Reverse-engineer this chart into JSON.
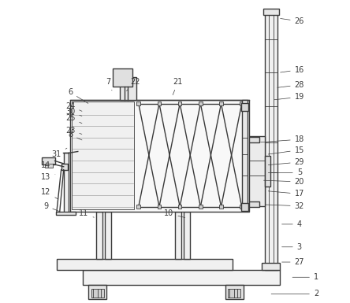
{
  "bg_color": "#ffffff",
  "line_color": "#3a3a3a",
  "lw": 1.0,
  "tlw": 0.6,
  "fs": 7.0,
  "label_positions": {
    "1": [
      0.965,
      0.085,
      0.88,
      0.085
    ],
    "2": [
      0.965,
      0.03,
      0.81,
      0.03
    ],
    "3": [
      0.91,
      0.185,
      0.845,
      0.185
    ],
    "4": [
      0.91,
      0.26,
      0.845,
      0.26
    ],
    "5": [
      0.91,
      0.43,
      0.8,
      0.43
    ],
    "6": [
      0.155,
      0.695,
      0.22,
      0.655
    ],
    "7": [
      0.28,
      0.73,
      0.295,
      0.695
    ],
    "8": [
      0.155,
      0.555,
      0.2,
      0.535
    ],
    "9": [
      0.075,
      0.32,
      0.125,
      0.3
    ],
    "10": [
      0.48,
      0.295,
      0.54,
      0.28
    ],
    "11": [
      0.2,
      0.295,
      0.24,
      0.28
    ],
    "12": [
      0.075,
      0.365,
      0.12,
      0.34
    ],
    "13": [
      0.075,
      0.415,
      0.105,
      0.425
    ],
    "14": [
      0.075,
      0.455,
      0.075,
      0.47
    ],
    "15": [
      0.91,
      0.505,
      0.8,
      0.49
    ],
    "16": [
      0.91,
      0.77,
      0.84,
      0.76
    ],
    "17": [
      0.91,
      0.36,
      0.8,
      0.37
    ],
    "18": [
      0.91,
      0.54,
      0.775,
      0.53
    ],
    "19": [
      0.91,
      0.68,
      0.82,
      0.67
    ],
    "20": [
      0.91,
      0.4,
      0.785,
      0.405
    ],
    "21": [
      0.51,
      0.73,
      0.49,
      0.68
    ],
    "22": [
      0.37,
      0.73,
      0.335,
      0.695
    ],
    "23": [
      0.155,
      0.57,
      0.2,
      0.555
    ],
    "24": [
      0.155,
      0.65,
      0.2,
      0.63
    ],
    "25": [
      0.155,
      0.61,
      0.2,
      0.59
    ],
    "26": [
      0.91,
      0.93,
      0.84,
      0.94
    ],
    "27": [
      0.91,
      0.135,
      0.845,
      0.135
    ],
    "28": [
      0.91,
      0.72,
      0.83,
      0.71
    ],
    "29": [
      0.91,
      0.465,
      0.8,
      0.455
    ],
    "30": [
      0.155,
      0.63,
      0.2,
      0.615
    ],
    "31": [
      0.11,
      0.49,
      0.15,
      0.515
    ],
    "32": [
      0.91,
      0.32,
      0.79,
      0.325
    ]
  }
}
